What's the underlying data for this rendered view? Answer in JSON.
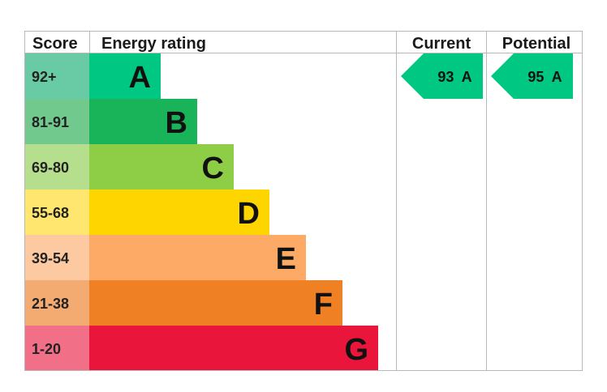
{
  "chart_data": {
    "type": "table",
    "headers": {
      "score": "Score",
      "rating": "Energy rating",
      "current": "Current",
      "potential": "Potential"
    },
    "bands": [
      {
        "letter": "A",
        "range": "92+",
        "bar_color": "#00c781",
        "score_color": "#68cba6"
      },
      {
        "letter": "B",
        "range": "81-91",
        "bar_color": "#19b459",
        "score_color": "#72c98e"
      },
      {
        "letter": "C",
        "range": "69-80",
        "bar_color": "#8dce46",
        "score_color": "#b5de8d"
      },
      {
        "letter": "D",
        "range": "55-68",
        "bar_color": "#ffd500",
        "score_color": "#ffe66e"
      },
      {
        "letter": "E",
        "range": "39-54",
        "bar_color": "#fcaa65",
        "score_color": "#fdc9a0"
      },
      {
        "letter": "F",
        "range": "21-38",
        "bar_color": "#ef8023",
        "score_color": "#f4ab72"
      },
      {
        "letter": "G",
        "range": "1-20",
        "bar_color": "#e9153b",
        "score_color": "#f17087"
      }
    ],
    "current": {
      "value": 93,
      "letter": "A",
      "label": "93  A",
      "color": "#00c781"
    },
    "potential": {
      "value": 95,
      "letter": "A",
      "label": "95  A",
      "color": "#00c781"
    }
  }
}
